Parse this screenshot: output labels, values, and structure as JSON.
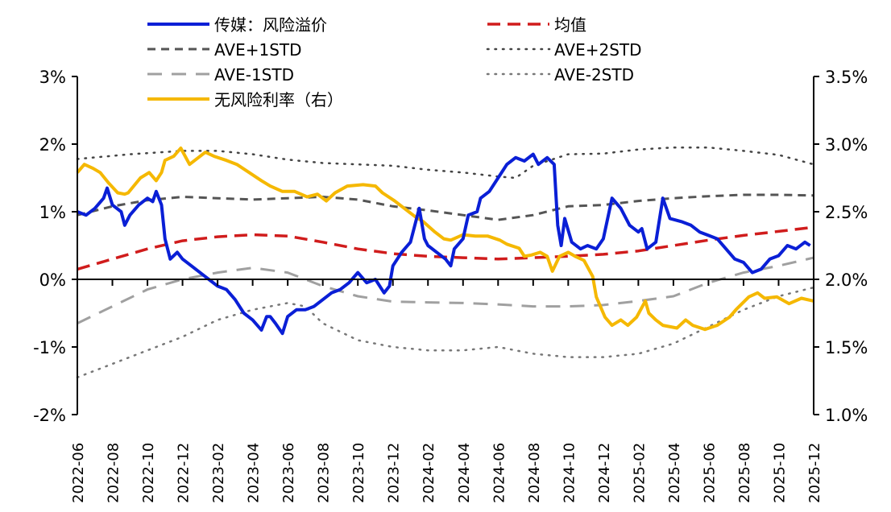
{
  "chart_data": {
    "type": "line",
    "title": "",
    "x_unit": "months since 2022-06",
    "x_tick_labels": [
      "2022-06",
      "2022-08",
      "2022-10",
      "2022-12",
      "2023-02",
      "2023-04",
      "2023-06",
      "2023-08",
      "2023-10",
      "2023-12",
      "2024-02",
      "2024-04",
      "2024-06",
      "2024-08",
      "2024-10",
      "2024-12",
      "2025-02",
      "2025-04",
      "2025-06",
      "2025-08",
      "2025-10",
      "2025-12"
    ],
    "xlim": [
      0,
      42
    ],
    "y_left": {
      "ticks": [
        "3%",
        "2%",
        "1%",
        "0%",
        "-1%",
        "-2%"
      ],
      "tick_values": [
        3,
        2,
        1,
        0,
        -1,
        -2
      ],
      "ylim": [
        -2,
        3
      ]
    },
    "y_right": {
      "ticks": [
        "3.5%",
        "3.0%",
        "2.5%",
        "2.0%",
        "1.5%",
        "1.0%"
      ],
      "tick_values": [
        3.5,
        3.0,
        2.5,
        2.0,
        1.5,
        1.0
      ],
      "ylim": [
        1.0,
        3.5
      ]
    },
    "legend_placement": "top",
    "series": [
      {
        "name": "传媒：风险溢价",
        "axis": "left",
        "color": "#0a1fd6",
        "style": "solid",
        "points": [
          [
            0,
            1.0
          ],
          [
            0.5,
            0.95
          ],
          [
            1,
            1.05
          ],
          [
            1.5,
            1.2
          ],
          [
            1.7,
            1.35
          ],
          [
            2,
            1.1
          ],
          [
            2.5,
            1.0
          ],
          [
            2.7,
            0.8
          ],
          [
            3,
            0.95
          ],
          [
            3.5,
            1.1
          ],
          [
            4,
            1.2
          ],
          [
            4.3,
            1.15
          ],
          [
            4.5,
            1.3
          ],
          [
            4.8,
            1.1
          ],
          [
            5,
            0.6
          ],
          [
            5.3,
            0.3
          ],
          [
            5.7,
            0.4
          ],
          [
            6,
            0.3
          ],
          [
            6.5,
            0.2
          ],
          [
            7,
            0.1
          ],
          [
            7.5,
            0.0
          ],
          [
            8,
            -0.1
          ],
          [
            8.5,
            -0.15
          ],
          [
            9,
            -0.3
          ],
          [
            9.5,
            -0.5
          ],
          [
            10,
            -0.6
          ],
          [
            10.5,
            -0.75
          ],
          [
            10.8,
            -0.55
          ],
          [
            11,
            -0.55
          ],
          [
            11.3,
            -0.65
          ],
          [
            11.7,
            -0.8
          ],
          [
            12,
            -0.55
          ],
          [
            12.5,
            -0.45
          ],
          [
            13,
            -0.45
          ],
          [
            13.5,
            -0.4
          ],
          [
            14,
            -0.3
          ],
          [
            14.5,
            -0.2
          ],
          [
            15,
            -0.15
          ],
          [
            15.5,
            -0.05
          ],
          [
            16,
            0.1
          ],
          [
            16.5,
            -0.05
          ],
          [
            17,
            0.0
          ],
          [
            17.5,
            -0.2
          ],
          [
            17.8,
            -0.1
          ],
          [
            18,
            0.2
          ],
          [
            18.5,
            0.4
          ],
          [
            19,
            0.55
          ],
          [
            19.5,
            1.05
          ],
          [
            19.8,
            0.6
          ],
          [
            20,
            0.5
          ],
          [
            20.5,
            0.4
          ],
          [
            21,
            0.3
          ],
          [
            21.3,
            0.2
          ],
          [
            21.5,
            0.45
          ],
          [
            22,
            0.6
          ],
          [
            22.3,
            0.95
          ],
          [
            22.8,
            1.0
          ],
          [
            23,
            1.2
          ],
          [
            23.5,
            1.3
          ],
          [
            24,
            1.5
          ],
          [
            24.5,
            1.7
          ],
          [
            25,
            1.8
          ],
          [
            25.5,
            1.75
          ],
          [
            26,
            1.85
          ],
          [
            26.3,
            1.7
          ],
          [
            26.8,
            1.8
          ],
          [
            27.2,
            1.7
          ],
          [
            27.4,
            0.8
          ],
          [
            27.6,
            0.5
          ],
          [
            27.8,
            0.9
          ],
          [
            28.2,
            0.55
          ],
          [
            28.7,
            0.45
          ],
          [
            29.1,
            0.5
          ],
          [
            29.6,
            0.45
          ],
          [
            30,
            0.6
          ],
          [
            30.5,
            1.2
          ],
          [
            31,
            1.05
          ],
          [
            31.5,
            0.8
          ],
          [
            32,
            0.7
          ],
          [
            32.2,
            0.75
          ],
          [
            32.5,
            0.45
          ],
          [
            33,
            0.55
          ],
          [
            33.4,
            1.2
          ],
          [
            33.8,
            0.9
          ],
          [
            34.5,
            0.85
          ],
          [
            35,
            0.8
          ],
          [
            35.5,
            0.7
          ],
          [
            36,
            0.65
          ],
          [
            36.5,
            0.6
          ],
          [
            37,
            0.45
          ],
          [
            37.5,
            0.3
          ],
          [
            38,
            0.25
          ],
          [
            38.5,
            0.1
          ],
          [
            39,
            0.15
          ],
          [
            39.5,
            0.3
          ],
          [
            40,
            0.35
          ],
          [
            40.5,
            0.5
          ],
          [
            41,
            0.45
          ],
          [
            41.5,
            0.55
          ],
          [
            41.8,
            0.5
          ]
        ]
      },
      {
        "name": "均值",
        "axis": "left",
        "color": "#d01c1c",
        "style": "dash",
        "points": [
          [
            0,
            0.15
          ],
          [
            2,
            0.3
          ],
          [
            4,
            0.45
          ],
          [
            6,
            0.57
          ],
          [
            8,
            0.63
          ],
          [
            10,
            0.66
          ],
          [
            12,
            0.64
          ],
          [
            14,
            0.55
          ],
          [
            16,
            0.45
          ],
          [
            18,
            0.38
          ],
          [
            20,
            0.34
          ],
          [
            22,
            0.32
          ],
          [
            24,
            0.3
          ],
          [
            26,
            0.32
          ],
          [
            28,
            0.34
          ],
          [
            30,
            0.37
          ],
          [
            32,
            0.42
          ],
          [
            34,
            0.5
          ],
          [
            36,
            0.58
          ],
          [
            38,
            0.65
          ],
          [
            40,
            0.71
          ],
          [
            42,
            0.77
          ]
        ]
      },
      {
        "name": "AVE+1STD",
        "axis": "left",
        "color": "#555555",
        "style": "dash2",
        "points": [
          [
            0,
            0.95
          ],
          [
            2,
            1.08
          ],
          [
            4,
            1.17
          ],
          [
            6,
            1.22
          ],
          [
            8,
            1.2
          ],
          [
            10,
            1.18
          ],
          [
            12,
            1.2
          ],
          [
            14,
            1.22
          ],
          [
            16,
            1.18
          ],
          [
            18,
            1.08
          ],
          [
            20,
            1.02
          ],
          [
            22,
            0.95
          ],
          [
            24,
            0.88
          ],
          [
            26,
            0.95
          ],
          [
            28,
            1.08
          ],
          [
            30,
            1.1
          ],
          [
            32,
            1.16
          ],
          [
            34,
            1.2
          ],
          [
            36,
            1.23
          ],
          [
            38,
            1.25
          ],
          [
            40,
            1.25
          ],
          [
            42,
            1.24
          ]
        ]
      },
      {
        "name": "AVE+2STD",
        "axis": "left",
        "color": "#444444",
        "style": "dot",
        "points": [
          [
            0,
            1.78
          ],
          [
            3,
            1.85
          ],
          [
            6,
            1.9
          ],
          [
            8,
            1.9
          ],
          [
            10,
            1.85
          ],
          [
            12,
            1.77
          ],
          [
            14,
            1.72
          ],
          [
            16,
            1.7
          ],
          [
            18,
            1.68
          ],
          [
            20,
            1.62
          ],
          [
            22,
            1.58
          ],
          [
            24,
            1.52
          ],
          [
            25,
            1.5
          ],
          [
            26,
            1.68
          ],
          [
            28,
            1.85
          ],
          [
            30,
            1.86
          ],
          [
            32,
            1.92
          ],
          [
            34,
            1.95
          ],
          [
            36,
            1.95
          ],
          [
            38,
            1.9
          ],
          [
            40,
            1.84
          ],
          [
            42,
            1.7
          ]
        ]
      },
      {
        "name": "AVE-1STD",
        "axis": "left",
        "color": "#a0a0a0",
        "style": "longdash",
        "points": [
          [
            0,
            -0.65
          ],
          [
            2,
            -0.4
          ],
          [
            4,
            -0.15
          ],
          [
            6,
            0.0
          ],
          [
            8,
            0.1
          ],
          [
            10,
            0.17
          ],
          [
            12,
            0.1
          ],
          [
            14,
            -0.1
          ],
          [
            16,
            -0.25
          ],
          [
            18,
            -0.33
          ],
          [
            20,
            -0.34
          ],
          [
            22,
            -0.35
          ],
          [
            24,
            -0.37
          ],
          [
            26,
            -0.4
          ],
          [
            28,
            -0.4
          ],
          [
            30,
            -0.38
          ],
          [
            32,
            -0.32
          ],
          [
            34,
            -0.25
          ],
          [
            36,
            -0.05
          ],
          [
            38,
            0.1
          ],
          [
            40,
            0.2
          ],
          [
            42,
            0.32
          ]
        ]
      },
      {
        "name": "AVE-2STD",
        "axis": "left",
        "color": "#777777",
        "style": "dot",
        "points": [
          [
            0,
            -1.45
          ],
          [
            2,
            -1.25
          ],
          [
            4,
            -1.05
          ],
          [
            6,
            -0.85
          ],
          [
            8,
            -0.6
          ],
          [
            10,
            -0.45
          ],
          [
            12,
            -0.35
          ],
          [
            13,
            -0.4
          ],
          [
            14,
            -0.65
          ],
          [
            16,
            -0.9
          ],
          [
            18,
            -1.0
          ],
          [
            20,
            -1.05
          ],
          [
            22,
            -1.05
          ],
          [
            24,
            -1.0
          ],
          [
            26,
            -1.1
          ],
          [
            28,
            -1.15
          ],
          [
            30,
            -1.15
          ],
          [
            32,
            -1.1
          ],
          [
            34,
            -0.95
          ],
          [
            36,
            -0.7
          ],
          [
            38,
            -0.45
          ],
          [
            40,
            -0.25
          ],
          [
            42,
            -0.12
          ]
        ]
      },
      {
        "name": "无风险利率（右）",
        "axis": "right",
        "color": "#f5b800",
        "style": "solid",
        "points": [
          [
            0,
            2.79
          ],
          [
            0.4,
            2.85
          ],
          [
            0.9,
            2.82
          ],
          [
            1.3,
            2.79
          ],
          [
            1.8,
            2.71
          ],
          [
            2.3,
            2.64
          ],
          [
            2.7,
            2.63
          ],
          [
            2.9,
            2.64
          ],
          [
            3.6,
            2.75
          ],
          [
            4.1,
            2.79
          ],
          [
            4.5,
            2.73
          ],
          [
            4.8,
            2.79
          ],
          [
            5.0,
            2.88
          ],
          [
            5.5,
            2.91
          ],
          [
            5.9,
            2.97
          ],
          [
            6.4,
            2.85
          ],
          [
            7.3,
            2.94
          ],
          [
            7.8,
            2.91
          ],
          [
            8.5,
            2.88
          ],
          [
            9.1,
            2.85
          ],
          [
            9.8,
            2.79
          ],
          [
            10.5,
            2.73
          ],
          [
            11.0,
            2.69
          ],
          [
            11.7,
            2.65
          ],
          [
            12.4,
            2.65
          ],
          [
            13.1,
            2.61
          ],
          [
            13.7,
            2.63
          ],
          [
            14.2,
            2.58
          ],
          [
            14.7,
            2.64
          ],
          [
            15.4,
            2.69
          ],
          [
            16.3,
            2.7
          ],
          [
            17.0,
            2.69
          ],
          [
            17.4,
            2.64
          ],
          [
            18.1,
            2.58
          ],
          [
            18.8,
            2.51
          ],
          [
            19.3,
            2.46
          ],
          [
            19.7,
            2.43
          ],
          [
            20.4,
            2.35
          ],
          [
            20.9,
            2.3
          ],
          [
            21.3,
            2.29
          ],
          [
            22.0,
            2.33
          ],
          [
            22.7,
            2.32
          ],
          [
            23.4,
            2.32
          ],
          [
            24.1,
            2.29
          ],
          [
            24.5,
            2.26
          ],
          [
            25.2,
            2.23
          ],
          [
            25.5,
            2.17
          ],
          [
            25.9,
            2.18
          ],
          [
            26.4,
            2.2
          ],
          [
            26.8,
            2.17
          ],
          [
            27.1,
            2.06
          ],
          [
            27.5,
            2.17
          ],
          [
            28.0,
            2.2
          ],
          [
            28.4,
            2.17
          ],
          [
            28.9,
            2.14
          ],
          [
            29.4,
            2.02
          ],
          [
            29.6,
            1.87
          ],
          [
            30.1,
            1.72
          ],
          [
            30.5,
            1.66
          ],
          [
            31.0,
            1.7
          ],
          [
            31.4,
            1.66
          ],
          [
            31.9,
            1.72
          ],
          [
            32.4,
            1.84
          ],
          [
            32.6,
            1.75
          ],
          [
            33.0,
            1.7
          ],
          [
            33.4,
            1.66
          ],
          [
            34.2,
            1.64
          ],
          [
            34.7,
            1.7
          ],
          [
            35.1,
            1.66
          ],
          [
            35.8,
            1.63
          ],
          [
            36.5,
            1.66
          ],
          [
            37.2,
            1.72
          ],
          [
            37.6,
            1.78
          ],
          [
            38.3,
            1.87
          ],
          [
            38.8,
            1.9
          ],
          [
            39.2,
            1.86
          ],
          [
            39.9,
            1.87
          ],
          [
            40.6,
            1.82
          ],
          [
            41.3,
            1.86
          ],
          [
            42.0,
            1.84
          ]
        ]
      }
    ]
  }
}
